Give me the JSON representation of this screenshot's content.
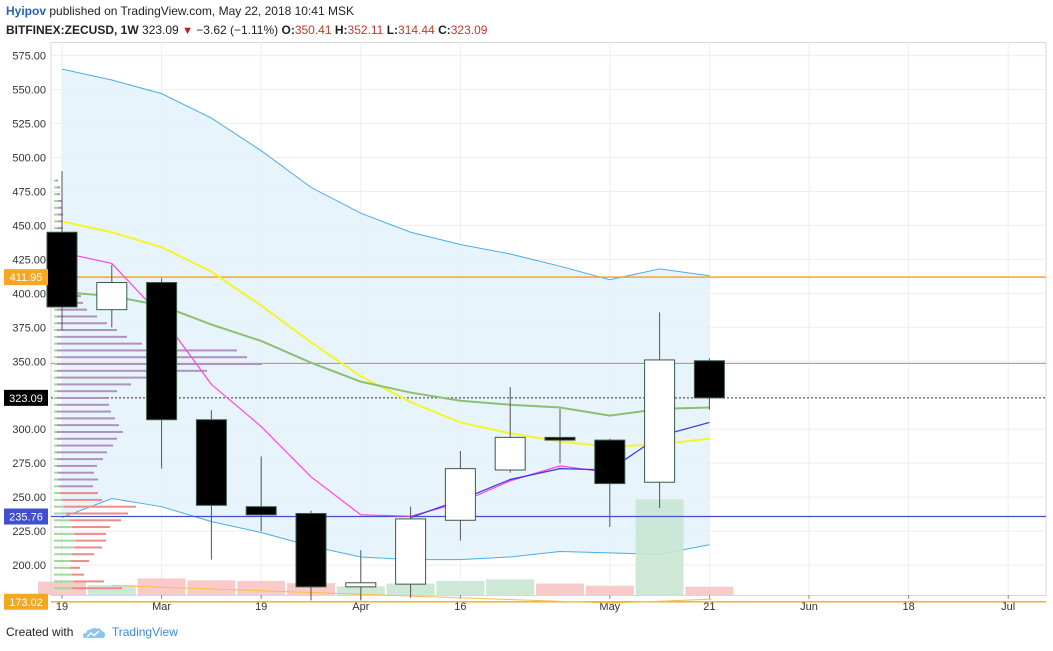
{
  "header": {
    "author": "Hyipov",
    "published_text": "published on TradingView.com, May 22, 2018 10:41 MSK",
    "symbol": "BITFINEX:ZECUSD",
    "interval": "1W",
    "last": "323.09",
    "change": "−3.62 (−1.11%)",
    "o_label": "O:",
    "o_value": "350.41",
    "h_label": "H:",
    "h_value": "352.11",
    "l_label": "L:",
    "l_value": "314.44",
    "c_label": "C:",
    "c_value": "323.09"
  },
  "footer": {
    "created_with": "Created with",
    "brand": "TradingView"
  },
  "colors": {
    "candle_up_fill": "#ffffff",
    "candle_down_fill": "#000000",
    "candle_outline": "#3a5a4a",
    "upper_band": "#4aaee8",
    "band_fill": "#e4f2fb",
    "ma_yellow": "#f5f52a",
    "ma_green": "#8dbf70",
    "ma_magenta": "#ff44dd",
    "ma_blue": "#3333ee",
    "level_orange": "#f5a623",
    "level_red": "#e57373",
    "level_blue": "#3f4fcf",
    "volume_up": "#c8e6d3",
    "volume_down": "#f8c4c4"
  },
  "chart_data": {
    "type": "candlestick",
    "y_ticks": [
      200,
      225,
      250,
      275,
      300,
      325,
      350,
      375,
      400,
      425,
      450,
      475,
      500,
      525,
      550,
      575
    ],
    "ylim": [
      178,
      585
    ],
    "x_ticks": [
      {
        "label": "19",
        "i": 0
      },
      {
        "label": "Mar",
        "i": 2
      },
      {
        "label": "19",
        "i": 4
      },
      {
        "label": "Apr",
        "i": 6
      },
      {
        "label": "16",
        "i": 8
      },
      {
        "label": "May",
        "i": 11
      },
      {
        "label": "21",
        "i": 13
      },
      {
        "label": "Jun",
        "i": 15
      },
      {
        "label": "18",
        "i": 17
      },
      {
        "label": "Jul",
        "i": 19
      }
    ],
    "candles": [
      {
        "o": 445,
        "h": 490,
        "l": 373,
        "c": 390
      },
      {
        "o": 388,
        "h": 421,
        "l": 375,
        "c": 408
      },
      {
        "o": 408,
        "h": 411,
        "l": 271,
        "c": 307
      },
      {
        "o": 307,
        "h": 314,
        "l": 204,
        "c": 244
      },
      {
        "o": 243,
        "h": 280,
        "l": 225,
        "c": 237
      },
      {
        "o": 238,
        "h": 240,
        "l": 174,
        "c": 184
      },
      {
        "o": 184,
        "h": 211,
        "l": 174,
        "c": 187
      },
      {
        "o": 186,
        "h": 243,
        "l": 176,
        "c": 234
      },
      {
        "o": 233,
        "h": 284,
        "l": 218,
        "c": 271
      },
      {
        "o": 270,
        "h": 331,
        "l": 268,
        "c": 294
      },
      {
        "o": 294,
        "h": 315,
        "l": 275,
        "c": 292
      },
      {
        "o": 292,
        "h": 293,
        "l": 228,
        "c": 260
      },
      {
        "o": 261,
        "h": 386,
        "l": 242,
        "c": 351
      },
      {
        "o": 350.41,
        "h": 352.11,
        "l": 314.44,
        "c": 323.09
      }
    ],
    "volume": [
      {
        "v": 0.42,
        "up": false
      },
      {
        "v": 0.31,
        "up": true
      },
      {
        "v": 0.52,
        "up": false
      },
      {
        "v": 0.46,
        "up": false
      },
      {
        "v": 0.44,
        "up": false
      },
      {
        "v": 0.37,
        "up": false
      },
      {
        "v": 0.27,
        "up": true
      },
      {
        "v": 0.36,
        "up": true
      },
      {
        "v": 0.44,
        "up": true
      },
      {
        "v": 0.49,
        "up": true
      },
      {
        "v": 0.36,
        "up": false
      },
      {
        "v": 0.29,
        "up": false
      },
      {
        "v": 3.0,
        "up": true
      },
      {
        "v": 0.26,
        "up": false
      }
    ],
    "bands": {
      "upper": [
        565,
        557,
        547,
        529,
        505,
        478,
        459,
        445,
        436,
        429,
        420,
        410,
        418,
        413
      ],
      "lower": [
        235,
        249,
        243,
        232,
        224,
        214,
        206,
        204,
        204,
        206,
        210,
        209,
        208,
        215
      ]
    },
    "ma_yellow": [
      453,
      445,
      434,
      416,
      391,
      364,
      339,
      320,
      305,
      297,
      291,
      287,
      289,
      293
    ],
    "ma_green": [
      401,
      398,
      391,
      377,
      365,
      349,
      335,
      327,
      321,
      318,
      316,
      310,
      315,
      316
    ],
    "ma_magenta": [
      430,
      422,
      383,
      333,
      302,
      265,
      237,
      236,
      246,
      262,
      273,
      268,
      null,
      null
    ],
    "ma_blue": [
      null,
      null,
      null,
      null,
      null,
      null,
      null,
      235,
      248,
      263,
      271,
      270,
      295,
      305
    ],
    "levels": [
      {
        "value": 411.95,
        "label": "411.95",
        "color": "#f5a623",
        "dash": false,
        "thick": 1.4
      },
      {
        "value": 348.5,
        "label": "",
        "color": "#e57373",
        "dash": false,
        "thick": 1
      },
      {
        "value": 323.09,
        "label": "323.09",
        "color": "#333333",
        "dash": true,
        "thick": 1
      },
      {
        "value": 235.76,
        "label": "235.76",
        "color": "#3f4fcf",
        "dash": false,
        "thick": 1.2
      },
      {
        "value": 173.02,
        "label": "173.02",
        "color": "#f5a623",
        "dash": false,
        "thick": 1.4
      }
    ],
    "level_label_bg": {
      "411.95": "#f5a623",
      "323.09": "#000000",
      "235.76": "#3f4fcf",
      "173.02": "#f5a623"
    },
    "volume_profile": {
      "price_from": 178,
      "price_to": 490,
      "bins": [
        {
          "p": 183,
          "up": 18,
          "dn": 50
        },
        {
          "p": 188,
          "up": 20,
          "dn": 30
        },
        {
          "p": 193,
          "up": 18,
          "dn": 12
        },
        {
          "p": 198,
          "up": 16,
          "dn": 10
        },
        {
          "p": 203,
          "up": 17,
          "dn": 18
        },
        {
          "p": 208,
          "up": 18,
          "dn": 22
        },
        {
          "p": 213,
          "up": 20,
          "dn": 28
        },
        {
          "p": 218,
          "up": 22,
          "dn": 30
        },
        {
          "p": 223,
          "up": 20,
          "dn": 32
        },
        {
          "p": 228,
          "up": 18,
          "dn": 38
        },
        {
          "p": 233,
          "up": 15,
          "dn": 52
        },
        {
          "p": 238,
          "up": 12,
          "dn": 62
        },
        {
          "p": 243,
          "up": 10,
          "dn": 72
        },
        {
          "p": 248,
          "up": 8,
          "dn": 40
        },
        {
          "p": 253,
          "up": 6,
          "dn": 38
        },
        {
          "p": 258,
          "up": 5,
          "dn": 34
        },
        {
          "p": 263,
          "up": 4,
          "dn": 40
        },
        {
          "p": 268,
          "up": 4,
          "dn": 36
        },
        {
          "p": 273,
          "up": 3,
          "dn": 40
        },
        {
          "p": 278,
          "up": 3,
          "dn": 46
        },
        {
          "p": 283,
          "up": 3,
          "dn": 50
        },
        {
          "p": 288,
          "up": 3,
          "dn": 56
        },
        {
          "p": 293,
          "up": 3,
          "dn": 60
        },
        {
          "p": 298,
          "up": 3,
          "dn": 66
        },
        {
          "p": 303,
          "up": 3,
          "dn": 62
        },
        {
          "p": 308,
          "up": 3,
          "dn": 58
        },
        {
          "p": 313,
          "up": 3,
          "dn": 54
        },
        {
          "p": 318,
          "up": 3,
          "dn": 52
        },
        {
          "p": 323,
          "up": 3,
          "dn": 50
        },
        {
          "p": 328,
          "up": 3,
          "dn": 60
        },
        {
          "p": 333,
          "up": 3,
          "dn": 74
        },
        {
          "p": 338,
          "up": 3,
          "dn": 92
        },
        {
          "p": 343,
          "up": 3,
          "dn": 150
        },
        {
          "p": 348,
          "up": 3,
          "dn": 205
        },
        {
          "p": 353,
          "up": 3,
          "dn": 190
        },
        {
          "p": 358,
          "up": 3,
          "dn": 180
        },
        {
          "p": 363,
          "up": 3,
          "dn": 85
        },
        {
          "p": 368,
          "up": 3,
          "dn": 70
        },
        {
          "p": 373,
          "up": 3,
          "dn": 60
        },
        {
          "p": 378,
          "up": 3,
          "dn": 50
        },
        {
          "p": 383,
          "up": 3,
          "dn": 40
        },
        {
          "p": 388,
          "up": 3,
          "dn": 30
        },
        {
          "p": 393,
          "up": 3,
          "dn": 26
        },
        {
          "p": 398,
          "up": 3,
          "dn": 24
        },
        {
          "p": 403,
          "up": 3,
          "dn": 20
        },
        {
          "p": 408,
          "up": 3,
          "dn": 16
        },
        {
          "p": 413,
          "up": 3,
          "dn": 12
        },
        {
          "p": 418,
          "up": 3,
          "dn": 10
        },
        {
          "p": 423,
          "up": 3,
          "dn": 8
        },
        {
          "p": 428,
          "up": 3,
          "dn": 8
        },
        {
          "p": 433,
          "up": 3,
          "dn": 7
        },
        {
          "p": 438,
          "up": 3,
          "dn": 7
        },
        {
          "p": 443,
          "up": 3,
          "dn": 6
        },
        {
          "p": 448,
          "up": 3,
          "dn": 6
        },
        {
          "p": 453,
          "up": 4,
          "dn": 5
        },
        {
          "p": 458,
          "up": 4,
          "dn": 5
        },
        {
          "p": 463,
          "up": 4,
          "dn": 4
        },
        {
          "p": 468,
          "up": 4,
          "dn": 4
        },
        {
          "p": 473,
          "up": 3,
          "dn": 3
        },
        {
          "p": 478,
          "up": 3,
          "dn": 3
        },
        {
          "p": 483,
          "up": 2,
          "dn": 2
        }
      ]
    }
  }
}
